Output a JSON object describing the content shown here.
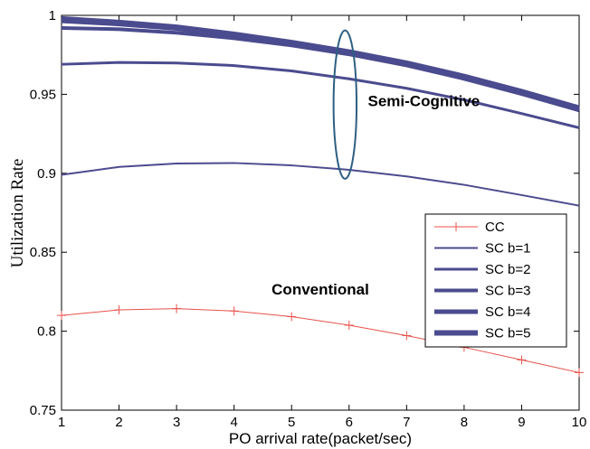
{
  "chart_data": {
    "type": "line",
    "xlabel": "PO arrival rate(packet/sec)",
    "ylabel": "Utilization Rate",
    "xlim": [
      1,
      10
    ],
    "ylim": [
      0.75,
      1
    ],
    "xticks": [
      1,
      2,
      3,
      4,
      5,
      6,
      7,
      8,
      9,
      10
    ],
    "yticks": [
      0.75,
      0.8,
      0.85,
      0.9,
      0.95,
      1
    ],
    "ytick_labels": [
      "0.75",
      "0.8",
      "0.85",
      "0.9",
      "0.95",
      "1"
    ],
    "grid": false,
    "legend_position": "bottom-right",
    "x": [
      1,
      2,
      3,
      4,
      5,
      6,
      7,
      8,
      9,
      10
    ],
    "series": [
      {
        "name": "CC",
        "color": "#e8524a",
        "marker": "plus",
        "weight": 1,
        "values": [
          0.81,
          0.8135,
          0.8143,
          0.8128,
          0.8092,
          0.8038,
          0.7972,
          0.7898,
          0.7818,
          0.7738
        ]
      },
      {
        "name": "SC b=1",
        "color": "#4b4b8f",
        "weight": 2,
        "values": [
          0.899,
          0.904,
          0.9062,
          0.9065,
          0.905,
          0.9022,
          0.898,
          0.8927,
          0.8862,
          0.8795
        ]
      },
      {
        "name": "SC b=2",
        "color": "#4b4b8f",
        "weight": 3,
        "values": [
          0.969,
          0.9702,
          0.9698,
          0.9682,
          0.9648,
          0.9598,
          0.9538,
          0.9465,
          0.9378,
          0.9288
        ]
      },
      {
        "name": "SC b=3",
        "color": "#4b4b8f",
        "weight": 4,
        "values": [
          0.992,
          0.9912,
          0.989,
          0.9855,
          0.981,
          0.9753,
          0.9683,
          0.9598,
          0.9502,
          0.9398
        ]
      },
      {
        "name": "SC b=4",
        "color": "#4b4b8f",
        "weight": 5,
        "values": [
          0.9965,
          0.9945,
          0.9917,
          0.9872,
          0.9822,
          0.9762,
          0.9692,
          0.9608,
          0.9512,
          0.9408
        ]
      },
      {
        "name": "SC b=5",
        "color": "#4b4b8f",
        "weight": 6,
        "values": [
          0.9978,
          0.9955,
          0.9925,
          0.988,
          0.9828,
          0.9768,
          0.9697,
          0.9613,
          0.9517,
          0.9413
        ]
      }
    ],
    "annotations": [
      {
        "text": "Semi-Cognitive",
        "x": 7.3,
        "y": 0.9425
      },
      {
        "text": "Conventional",
        "x": 5.5,
        "y": 0.8232
      }
    ],
    "ellipse": {
      "cx": 5.93,
      "cy": 0.9435,
      "rx": 0.2,
      "ry": 0.047,
      "color": "#2e5f82"
    }
  }
}
